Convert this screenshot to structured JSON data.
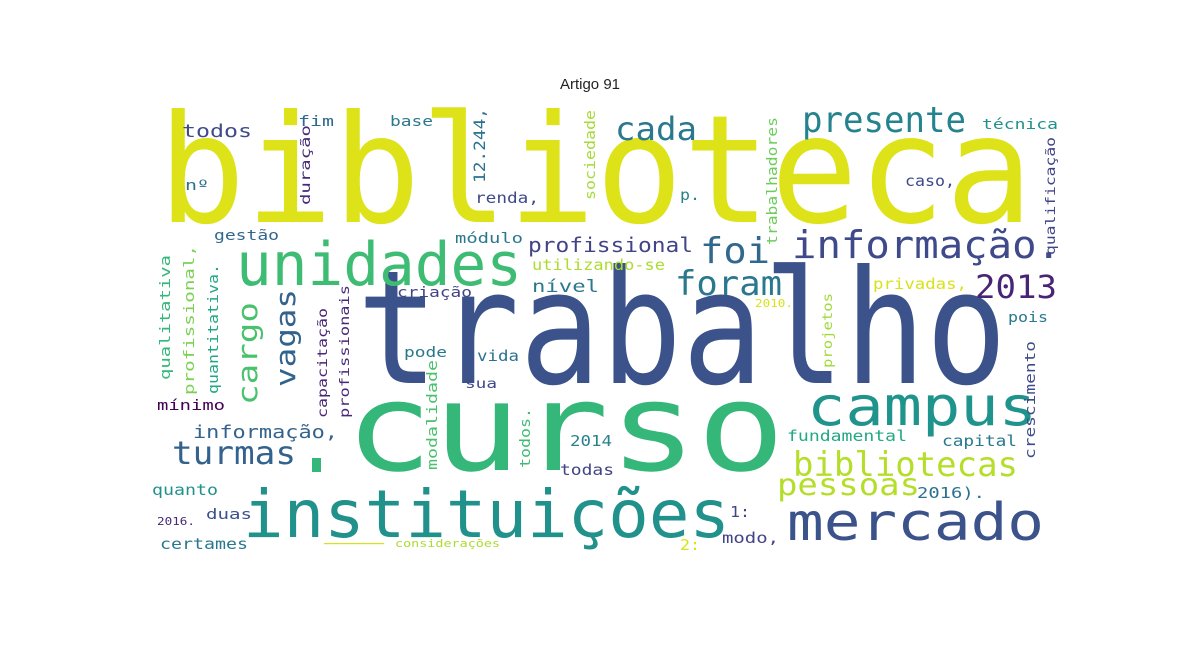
{
  "chart_data": {
    "type": "wordcloud",
    "title": "Artigo 91",
    "colormap": "viridis",
    "words": [
      {
        "text": "biblioteca",
        "color": "#dde318"
      },
      {
        "text": "trabalho",
        "color": "#3b528b"
      },
      {
        "text": "curso",
        "color": "#35b779"
      },
      {
        "text": "instituições",
        "color": "#21918c"
      },
      {
        "text": "unidades",
        "color": "#3fbc73"
      },
      {
        "text": "campus",
        "color": "#1f948c"
      },
      {
        "text": "mercado",
        "color": "#3b528b"
      },
      {
        "text": "informação.",
        "color": "#3e4a89"
      },
      {
        "text": "bibliotecas",
        "color": "#b5de2b"
      },
      {
        "text": "pessoas",
        "color": "#b5de2b"
      },
      {
        "text": "presente",
        "color": "#25838e"
      },
      {
        "text": "cada",
        "color": "#2a788e"
      },
      {
        "text": "foi",
        "color": "#31688e"
      },
      {
        "text": "foram",
        "color": "#2a788e"
      },
      {
        "text": "2013",
        "color": "#482475"
      },
      {
        "text": "turmas",
        "color": "#33638d"
      },
      {
        "text": "vagas",
        "color": "#33638d"
      },
      {
        "text": "cargo",
        "color": "#4ac16d"
      },
      {
        "text": "profissional",
        "color": "#414487"
      },
      {
        "text": "todos",
        "color": "#3e4a89"
      },
      {
        "text": "fim",
        "color": "#31688e"
      },
      {
        "text": "base",
        "color": "#2a788e"
      },
      {
        "text": "12.244,",
        "color": "#2c728e"
      },
      {
        "text": "sociedade",
        "color": "#a5db36"
      },
      {
        "text": "trabalhadores",
        "color": "#6ccd5a"
      },
      {
        "text": "técnica",
        "color": "#21918c"
      },
      {
        "text": "qualificação",
        "color": "#414487"
      },
      {
        "text": "nº",
        "color": "#2c728e"
      },
      {
        "text": "duração",
        "color": "#482878"
      },
      {
        "text": "renda,",
        "color": "#3e4a89"
      },
      {
        "text": "p.",
        "color": "#26828e"
      },
      {
        "text": "caso,",
        "color": "#3e4a89"
      },
      {
        "text": "gestão",
        "color": "#31688e"
      },
      {
        "text": "módulo",
        "color": "#2a788e"
      },
      {
        "text": "utilizando-se",
        "color": "#addc30"
      },
      {
        "text": "nível",
        "color": "#2a788e"
      },
      {
        "text": "criação",
        "color": "#414487"
      },
      {
        "text": "2010.",
        "color": "#d8e219"
      },
      {
        "text": "privadas,",
        "color": "#d8e219"
      },
      {
        "text": "qualitativa",
        "color": "#35b779"
      },
      {
        "text": "profissional,",
        "color": "#7ad151"
      },
      {
        "text": "quantitativa.",
        "color": "#22a884"
      },
      {
        "text": "capacitação",
        "color": "#482475"
      },
      {
        "text": "profissionais",
        "color": "#482878"
      },
      {
        "text": "projetos",
        "color": "#9fda3a"
      },
      {
        "text": "pois",
        "color": "#2a788e"
      },
      {
        "text": "crescimento",
        "color": "#3e4a89"
      },
      {
        "text": "pode",
        "color": "#2a788e"
      },
      {
        "text": "vida",
        "color": "#2c728e"
      },
      {
        "text": "modalidade",
        "color": "#4ac16d"
      },
      {
        "text": "sua",
        "color": "#3e4a89"
      },
      {
        "text": "mínimo",
        "color": "#440154"
      },
      {
        "text": "informação,",
        "color": "#33638d"
      },
      {
        "text": "fundamental",
        "color": "#22a884"
      },
      {
        "text": "capital",
        "color": "#2a788e"
      },
      {
        "text": "2014",
        "color": "#26828e"
      },
      {
        "text": "todos.",
        "color": "#3fbc73"
      },
      {
        "text": "todas",
        "color": "#414487"
      },
      {
        "text": "quanto",
        "color": "#21918c"
      },
      {
        "text": "2016).",
        "color": "#2c728e"
      },
      {
        "text": "2016.",
        "color": "#482878"
      },
      {
        "text": "duas",
        "color": "#3b528b"
      },
      {
        "text": "1:",
        "color": "#414487"
      },
      {
        "text": "certames",
        "color": "#2a788e"
      },
      {
        "text": "considerações",
        "color": "#addc30"
      },
      {
        "text": "2:",
        "color": "#d8e219"
      },
      {
        "text": "modo,",
        "color": "#414487"
      }
    ]
  }
}
